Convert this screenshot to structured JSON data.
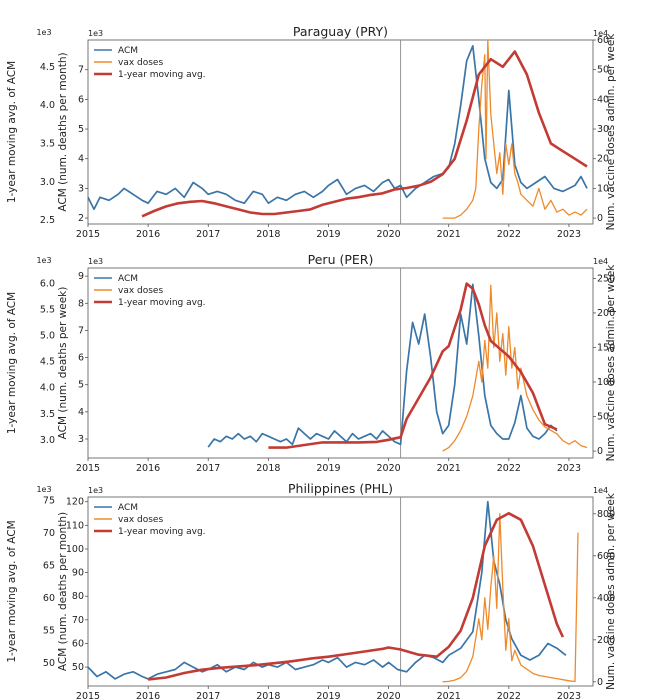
{
  "chart_data": [
    {
      "type": "line",
      "title": "Paraguay (PRY)",
      "xlabel": "",
      "ylabel_outer": "1-year moving avg. of ACM",
      "ylabel_inner": "ACM (num. deaths per month)",
      "ylabel_right": "Num. vaccine doses admin. per week",
      "multiplier_left": "1e3",
      "multiplier_right": "1e4",
      "xlim": [
        2015,
        2023.4
      ],
      "x_ticks": [
        "2015",
        "2016",
        "2017",
        "2018",
        "2019",
        "2020",
        "2021",
        "2022",
        "2023"
      ],
      "outer_ylim": [
        2.45,
        4.85
      ],
      "outer_ticks": [
        "2.5",
        "3.0",
        "3.5",
        "4.0",
        "4.5"
      ],
      "inner_ylim": [
        1.8,
        8.0
      ],
      "inner_ticks": [
        "2",
        "3",
        "4",
        "5",
        "6",
        "7"
      ],
      "right_ylim": [
        -2,
        60
      ],
      "right_ticks": [
        "0",
        "10",
        "20",
        "30",
        "40",
        "50",
        "60"
      ],
      "vline_x": 2020.2,
      "legend": [
        "ACM",
        "vax doses",
        "1-year moving avg."
      ],
      "series": [
        {
          "name": "ACM",
          "axis": "inner",
          "color": "#3a75a8",
          "x": [
            2015.0,
            2015.1,
            2015.2,
            2015.35,
            2015.5,
            2015.6,
            2015.75,
            2015.9,
            2016.0,
            2016.15,
            2016.3,
            2016.45,
            2016.6,
            2016.75,
            2016.9,
            2017.0,
            2017.15,
            2017.3,
            2017.45,
            2017.6,
            2017.75,
            2017.9,
            2018.0,
            2018.15,
            2018.3,
            2018.45,
            2018.6,
            2018.75,
            2018.9,
            2019.0,
            2019.15,
            2019.3,
            2019.45,
            2019.6,
            2019.75,
            2019.9,
            2020.0,
            2020.1,
            2020.2,
            2020.3,
            2020.45,
            2020.6,
            2020.75,
            2020.9,
            2021.0,
            2021.1,
            2021.2,
            2021.3,
            2021.4,
            2021.5,
            2021.6,
            2021.7,
            2021.8,
            2021.9,
            2022.0,
            2022.1,
            2022.2,
            2022.3,
            2022.45,
            2022.6,
            2022.75,
            2022.9,
            2023.0,
            2023.1,
            2023.2,
            2023.3
          ],
          "y": [
            2.7,
            2.3,
            2.7,
            2.6,
            2.8,
            3.0,
            2.8,
            2.6,
            2.5,
            2.9,
            2.8,
            3.0,
            2.7,
            3.2,
            3.0,
            2.8,
            2.9,
            2.8,
            2.6,
            2.5,
            2.9,
            2.8,
            2.5,
            2.7,
            2.6,
            2.8,
            2.9,
            2.7,
            2.9,
            3.1,
            3.3,
            2.8,
            3.0,
            3.1,
            2.9,
            3.2,
            3.3,
            3.0,
            3.1,
            2.7,
            3.0,
            3.2,
            3.4,
            3.5,
            3.7,
            4.5,
            5.8,
            7.3,
            7.8,
            6.0,
            4.0,
            3.2,
            3.0,
            3.3,
            6.3,
            3.8,
            3.2,
            3.0,
            3.2,
            3.4,
            3.0,
            2.9,
            3.0,
            3.1,
            3.4,
            3.0
          ]
        },
        {
          "name": "vax doses",
          "axis": "right",
          "color": "#ef8a2a",
          "x": [
            2020.9,
            2021.0,
            2021.1,
            2021.2,
            2021.3,
            2021.4,
            2021.45,
            2021.5,
            2021.55,
            2021.6,
            2021.62,
            2021.65,
            2021.7,
            2021.75,
            2021.8,
            2021.85,
            2021.9,
            2021.95,
            2022.0,
            2022.05,
            2022.1,
            2022.15,
            2022.2,
            2022.3,
            2022.4,
            2022.5,
            2022.6,
            2022.7,
            2022.8,
            2022.9,
            2023.0,
            2023.1,
            2023.2,
            2023.3
          ],
          "y": [
            0,
            0,
            0,
            1,
            3,
            6,
            10,
            30,
            45,
            55,
            20,
            60,
            35,
            25,
            15,
            22,
            8,
            25,
            18,
            25,
            15,
            12,
            8,
            6,
            4,
            10,
            3,
            6,
            2,
            3,
            1,
            2,
            1,
            3
          ]
        },
        {
          "name": "1-year moving avg.",
          "axis": "outer",
          "color": "#c23b34",
          "x": [
            2015.9,
            2016.1,
            2016.3,
            2016.5,
            2016.7,
            2016.9,
            2017.1,
            2017.3,
            2017.5,
            2017.7,
            2017.9,
            2018.1,
            2018.3,
            2018.5,
            2018.7,
            2018.9,
            2019.1,
            2019.3,
            2019.5,
            2019.7,
            2019.9,
            2020.1,
            2020.3,
            2020.5,
            2020.7,
            2020.9,
            2021.1,
            2021.3,
            2021.5,
            2021.7,
            2021.9,
            2022.0,
            2022.1,
            2022.3,
            2022.5,
            2022.7,
            2022.9,
            2023.1,
            2023.3
          ],
          "y": [
            2.55,
            2.62,
            2.68,
            2.72,
            2.74,
            2.75,
            2.72,
            2.68,
            2.64,
            2.6,
            2.58,
            2.58,
            2.6,
            2.62,
            2.64,
            2.7,
            2.74,
            2.78,
            2.8,
            2.83,
            2.85,
            2.9,
            2.92,
            2.95,
            3.0,
            3.1,
            3.3,
            3.8,
            4.4,
            4.6,
            4.5,
            4.6,
            4.7,
            4.4,
            3.9,
            3.5,
            3.4,
            3.3,
            3.2
          ]
        }
      ]
    },
    {
      "type": "line",
      "title": "Peru (PER)",
      "xlabel": "",
      "ylabel_outer": "1-year moving avg. of ACM",
      "ylabel_inner": "ACM (num. deaths per week)",
      "ylabel_right": "Num. vaccine doses admin. per week",
      "multiplier_left": "1e3",
      "multiplier_right": "1e4",
      "xlim": [
        2015,
        2023.4
      ],
      "x_ticks": [
        "2015",
        "2016",
        "2017",
        "2018",
        "2019",
        "2020",
        "2021",
        "2022",
        "2023"
      ],
      "outer_ylim": [
        2.65,
        6.3
      ],
      "outer_ticks": [
        "3.0",
        "3.5",
        "4.0",
        "4.5",
        "5.0",
        "5.5",
        "6.0"
      ],
      "inner_ylim": [
        2.3,
        9.3
      ],
      "inner_ticks": [
        "3",
        "4",
        "5",
        "6",
        "7",
        "8",
        "9"
      ],
      "right_ylim": [
        -10,
        265
      ],
      "right_ticks": [
        "0",
        "50",
        "100",
        "150",
        "200",
        "250"
      ],
      "vline_x": 2020.2,
      "legend": [
        "ACM",
        "vax doses",
        "1-year moving avg."
      ],
      "series": [
        {
          "name": "ACM",
          "axis": "inner",
          "color": "#3a75a8",
          "x": [
            2017.0,
            2017.1,
            2017.2,
            2017.3,
            2017.4,
            2017.5,
            2017.6,
            2017.7,
            2017.8,
            2017.9,
            2018.0,
            2018.1,
            2018.2,
            2018.3,
            2018.4,
            2018.5,
            2018.6,
            2018.7,
            2018.8,
            2018.9,
            2019.0,
            2019.1,
            2019.2,
            2019.3,
            2019.4,
            2019.5,
            2019.6,
            2019.7,
            2019.8,
            2019.9,
            2020.0,
            2020.1,
            2020.2,
            2020.3,
            2020.4,
            2020.5,
            2020.6,
            2020.7,
            2020.8,
            2020.9,
            2021.0,
            2021.1,
            2021.2,
            2021.3,
            2021.4,
            2021.5,
            2021.6,
            2021.7,
            2021.8,
            2021.9,
            2022.0,
            2022.1,
            2022.2,
            2022.3,
            2022.4,
            2022.5,
            2022.6,
            2022.7,
            2022.8
          ],
          "y": [
            2.7,
            3.0,
            2.9,
            3.1,
            3.0,
            3.2,
            3.0,
            3.1,
            2.9,
            3.2,
            3.1,
            3.0,
            2.9,
            3.0,
            2.8,
            3.4,
            3.2,
            3.0,
            3.2,
            3.1,
            3.0,
            3.3,
            3.1,
            2.9,
            3.2,
            3.0,
            3.1,
            3.2,
            3.0,
            3.3,
            3.1,
            2.9,
            2.8,
            5.5,
            7.3,
            6.5,
            7.6,
            6.0,
            4.0,
            3.2,
            3.5,
            5.0,
            7.6,
            6.5,
            8.7,
            6.8,
            4.6,
            3.5,
            3.2,
            3.0,
            3.0,
            3.6,
            4.6,
            3.4,
            3.1,
            3.0,
            3.2,
            3.5,
            3.3
          ]
        },
        {
          "name": "vax doses",
          "axis": "right",
          "color": "#ef8a2a",
          "x": [
            2020.9,
            2021.0,
            2021.1,
            2021.2,
            2021.3,
            2021.4,
            2021.5,
            2021.55,
            2021.6,
            2021.65,
            2021.7,
            2021.75,
            2021.8,
            2021.85,
            2021.9,
            2021.95,
            2022.0,
            2022.05,
            2022.1,
            2022.15,
            2022.2,
            2022.3,
            2022.4,
            2022.5,
            2022.6,
            2022.7,
            2022.8,
            2022.9,
            2023.0,
            2023.1,
            2023.2,
            2023.3
          ],
          "y": [
            0,
            5,
            15,
            30,
            50,
            80,
            130,
            100,
            160,
            120,
            240,
            150,
            200,
            130,
            170,
            110,
            180,
            120,
            150,
            90,
            120,
            80,
            60,
            45,
            35,
            30,
            25,
            15,
            10,
            15,
            8,
            5
          ]
        },
        {
          "name": "1-year moving avg.",
          "axis": "outer",
          "color": "#c23b34",
          "x": [
            2018.0,
            2018.3,
            2018.6,
            2018.9,
            2019.2,
            2019.5,
            2019.8,
            2020.0,
            2020.2,
            2020.3,
            2020.5,
            2020.7,
            2020.9,
            2021.0,
            2021.2,
            2021.3,
            2021.4,
            2021.5,
            2021.6,
            2021.7,
            2021.9,
            2022.0,
            2022.2,
            2022.4,
            2022.6,
            2022.8
          ],
          "y": [
            2.85,
            2.85,
            2.9,
            2.95,
            2.95,
            2.95,
            2.96,
            3.0,
            3.05,
            3.4,
            3.8,
            4.2,
            4.7,
            4.8,
            5.5,
            6.0,
            5.9,
            5.6,
            5.2,
            4.9,
            4.7,
            4.6,
            4.3,
            3.9,
            3.3,
            3.2
          ]
        }
      ]
    },
    {
      "type": "line",
      "title": "Philippines (PHL)",
      "xlabel": "",
      "ylabel_outer": "1-year moving avg. of ACM",
      "ylabel_inner": "ACM (num. deaths per month)",
      "ylabel_right": "Num. vaccine doses admin. per week",
      "multiplier_left": "1e3",
      "multiplier_right": "1e4",
      "xlim": [
        2015,
        2023.4
      ],
      "x_ticks": [
        "2015",
        "2016",
        "2017",
        "2018",
        "2019",
        "2020",
        "2021",
        "2022",
        "2023"
      ],
      "outer_ylim": [
        46.5,
        75.5
      ],
      "outer_ticks": [
        "50",
        "55",
        "60",
        "65",
        "70",
        "75"
      ],
      "inner_ylim": [
        42,
        122
      ],
      "inner_ticks": [
        "50",
        "60",
        "70",
        "80",
        "90",
        "100",
        "110",
        "120"
      ],
      "right_ylim": [
        -20,
        880
      ],
      "right_ticks": [
        "0",
        "200",
        "400",
        "600",
        "800"
      ],
      "vline_x": 2020.2,
      "legend": [
        "ACM",
        "vax doses",
        "1-year moving avg."
      ],
      "series": [
        {
          "name": "ACM",
          "axis": "inner",
          "color": "#3a75a8",
          "x": [
            2015.0,
            2015.15,
            2015.3,
            2015.45,
            2015.6,
            2015.75,
            2015.9,
            2016.0,
            2016.15,
            2016.3,
            2016.45,
            2016.6,
            2016.75,
            2016.9,
            2017.0,
            2017.15,
            2017.3,
            2017.45,
            2017.6,
            2017.75,
            2017.9,
            2018.0,
            2018.15,
            2018.3,
            2018.45,
            2018.6,
            2018.75,
            2018.9,
            2019.0,
            2019.15,
            2019.3,
            2019.45,
            2019.6,
            2019.75,
            2019.9,
            2020.0,
            2020.15,
            2020.3,
            2020.45,
            2020.6,
            2020.75,
            2020.9,
            2021.0,
            2021.2,
            2021.4,
            2021.55,
            2021.65,
            2021.75,
            2021.85,
            2021.95,
            2022.05,
            2022.2,
            2022.35,
            2022.5,
            2022.65,
            2022.8,
            2022.95
          ],
          "y": [
            50,
            46,
            48,
            45,
            47,
            48,
            46,
            45,
            47,
            48,
            49,
            52,
            50,
            48,
            49,
            51,
            48,
            50,
            49,
            52,
            50,
            51,
            50,
            52,
            49,
            50,
            51,
            53,
            52,
            54,
            50,
            52,
            51,
            53,
            50,
            52,
            49,
            48,
            52,
            55,
            54,
            52,
            55,
            58,
            65,
            90,
            120,
            95,
            85,
            70,
            62,
            55,
            53,
            55,
            60,
            58,
            55
          ]
        },
        {
          "name": "vax doses",
          "axis": "right",
          "color": "#ef8a2a",
          "x": [
            2020.9,
            2021.0,
            2021.1,
            2021.2,
            2021.3,
            2021.4,
            2021.5,
            2021.55,
            2021.6,
            2021.65,
            2021.7,
            2021.75,
            2021.8,
            2021.85,
            2021.9,
            2021.95,
            2022.0,
            2022.05,
            2022.1,
            2022.2,
            2022.3,
            2022.4,
            2022.5,
            2022.6,
            2022.7,
            2022.8,
            2022.9,
            2023.0,
            2023.05,
            2023.1,
            2023.15
          ],
          "y": [
            0,
            2,
            8,
            20,
            50,
            120,
            300,
            200,
            400,
            250,
            450,
            600,
            350,
            800,
            450,
            150,
            300,
            100,
            150,
            80,
            60,
            40,
            30,
            25,
            20,
            15,
            10,
            5,
            3,
            2,
            710
          ]
        },
        {
          "name": "1-year moving avg.",
          "axis": "outer",
          "color": "#c23b34",
          "x": [
            2016.0,
            2016.3,
            2016.6,
            2016.9,
            2017.2,
            2017.5,
            2017.8,
            2018.1,
            2018.4,
            2018.7,
            2019.0,
            2019.3,
            2019.6,
            2019.9,
            2020.0,
            2020.2,
            2020.5,
            2020.8,
            2021.0,
            2021.2,
            2021.4,
            2021.6,
            2021.8,
            2022.0,
            2022.2,
            2022.4,
            2022.6,
            2022.8,
            2022.9
          ],
          "y": [
            47.5,
            47.8,
            48.5,
            49,
            49.3,
            49.5,
            49.7,
            50,
            50.3,
            50.7,
            51,
            51.4,
            51.8,
            52.2,
            52.4,
            52.1,
            51.3,
            51,
            52.5,
            55,
            60,
            68,
            72,
            73,
            72,
            68,
            62,
            56,
            54
          ]
        }
      ]
    }
  ]
}
